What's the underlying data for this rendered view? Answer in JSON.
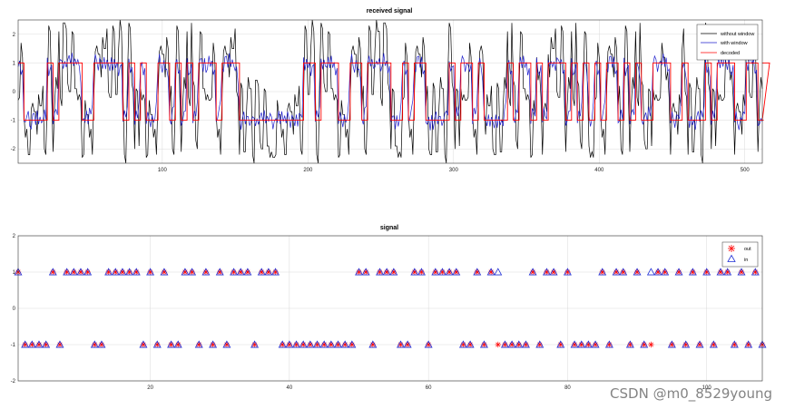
{
  "watermark": "CSDN @m0_8529young",
  "colors": {
    "without_window": "#000000",
    "with_window": "#1f1fcc",
    "decoded": "#ff0000",
    "out": "#ff0000",
    "in": "#1f2fd6",
    "grid": "#d9d9d9"
  },
  "chart_data": [
    {
      "type": "line",
      "title": "received signal",
      "xlabel": "",
      "ylabel": "",
      "xlim": [
        1,
        512
      ],
      "ylim": [
        -2.5,
        2.5
      ],
      "xticks": [
        100,
        200,
        300,
        400,
        500
      ],
      "yticks": [
        -2,
        -1,
        0,
        1,
        2
      ],
      "grid": true,
      "legend_position": "top-right",
      "series": [
        {
          "name": "without window",
          "color": "#000000"
        },
        {
          "name": "with window",
          "color": "#1f1fcc"
        },
        {
          "name": "decoded",
          "color": "#ff0000"
        }
      ],
      "samples_per_symbol": 4,
      "decoded_symbols": [
        1,
        -1,
        -1,
        -1,
        -1,
        1,
        -1,
        1,
        1,
        1,
        1,
        -1,
        -1,
        1,
        1,
        1,
        1,
        1,
        -1,
        1,
        -1,
        1,
        -1,
        -1,
        1,
        1,
        -1,
        1,
        -1,
        1,
        -1,
        1,
        1,
        1,
        -1,
        1,
        1,
        1,
        -1,
        -1,
        -1,
        -1,
        -1,
        -1,
        -1,
        -1,
        -1,
        -1,
        -1,
        1,
        1,
        -1,
        1,
        1,
        1,
        -1,
        -1,
        1,
        1,
        -1,
        1,
        1,
        1,
        1,
        -1,
        -1,
        1,
        -1,
        1,
        1,
        -1,
        -1,
        -1,
        -1,
        1,
        -1,
        1,
        1,
        -1,
        1,
        -1,
        -1,
        -1,
        -1,
        1,
        -1,
        1,
        1,
        -1,
        1,
        -1,
        1,
        1,
        1,
        -1,
        1,
        -1,
        1,
        -1,
        1,
        -1,
        1,
        1,
        -1,
        1,
        -1,
        1,
        -1,
        -1,
        1,
        1,
        1,
        -1,
        -1,
        1,
        -1,
        -1,
        -1,
        1,
        -1,
        1,
        1,
        1,
        -1,
        -1,
        1,
        1,
        -1,
        -1,
        1
      ],
      "with_window_offsets": [
        0.25,
        -0.2,
        0.35,
        -0.3,
        0.1,
        0.28,
        -0.15,
        0.22,
        -0.35,
        0.18,
        0.05,
        -0.25,
        0.3,
        -0.1,
        0.2,
        -0.3,
        0.15,
        0.33,
        -0.22,
        0.12,
        -0.05,
        0.27,
        -0.33,
        0.08,
        0.2,
        -0.18,
        0.31,
        -0.27,
        0.14,
        -0.09,
        0.24,
        0.36,
        -0.12,
        0.19,
        -0.29,
        0.07,
        0.3,
        -0.2,
        0.11,
        0.26,
        -0.34,
        0.16,
        -0.06,
        0.23,
        -0.31,
        0.09,
        0.21,
        -0.16,
        0.34,
        -0.24,
        0.13,
        0.02,
        -0.28,
        0.29,
        -0.11,
        0.17,
        0.32,
        -0.21,
        0.06,
        -0.32,
        0.25,
        -0.07,
        0.2,
        0.35,
        -0.19,
        0.1,
        -0.26,
        0.28,
        -0.14,
        0.18,
        -0.3,
        0.04,
        0.33,
        -0.23,
        0.15,
        -0.08,
        0.26,
        -0.35,
        0.12,
        0.22,
        -0.17,
        0.3,
        -0.27,
        0.09,
        0.24,
        -0.12,
        0.31,
        -0.04,
        0.19,
        -0.29,
        0.14,
        0.27,
        -0.2,
        0.07,
        -0.33,
        0.21,
        0.11,
        -0.25,
        0.34,
        -0.1,
        0.16,
        -0.22,
        0.29,
        0.03,
        -0.31,
        0.23,
        -0.15,
        0.18,
        0.32,
        -0.06,
        0.25,
        -0.28,
        0.12,
        -0.18,
        0.3,
        0.08,
        -0.24,
        0.2,
        -0.34,
        0.15,
        0.27,
        -0.09,
        0.22,
        -0.3,
        0.13,
        0.35,
        -0.14,
        0.05,
        -0.26,
        0.24,
        -0.19,
        0.31
      ],
      "without_window_offsets": [
        1.1,
        -0.9,
        0.6,
        -1.3,
        1.4,
        -0.5,
        0.9,
        -1.2,
        0.3,
        1.5,
        -1.0,
        0.7,
        -0.4,
        1.2,
        -1.4,
        0.2,
        0.8,
        -1.1,
        1.3,
        -0.6,
        0.5,
        -1.5,
        1.0,
        -0.3,
        1.4,
        -0.8,
        0.1,
        -1.2,
        0.9,
        1.1,
        -0.7,
        0.4,
        -1.4,
        1.2,
        -0.2,
        0.6,
        -1.0,
        1.5,
        -0.9,
        0.3,
        1.0,
        -1.3,
        0.7,
        -0.5,
        1.3,
        -1.1,
        0.2,
        0.9,
        -0.6,
        1.4,
        -1.5,
        0.5,
        -0.1,
        1.1,
        -0.8,
        1.2,
        -1.3,
        0.4,
        0.8,
        -1.0,
        1.5,
        -0.4,
        0.6,
        -1.2,
        1.0,
        0.1,
        -0.9,
        1.3,
        -0.7,
        0.3,
        -1.4,
        1.1,
        0.7,
        -0.5,
        1.4,
        -1.1,
        0.2,
        -0.8,
        1.2,
        0.5,
        -1.3,
        0.9,
        -0.3,
        1.5,
        -1.0,
        0.6,
        -0.2,
        1.1,
        -1.4,
        0.8,
        0.4,
        -1.2,
        1.3,
        -0.6,
        0.1,
        -1.5,
        1.0,
        0.7,
        -0.9,
        1.4,
        -0.4,
        0.3,
        -1.1,
        1.2,
        0.9,
        -1.3,
        0.5,
        -0.7,
        1.5,
        -0.2,
        0.6,
        -1.0,
        1.3,
        -0.8,
        0.2,
        1.1,
        -1.4,
        0.7,
        -0.5,
        1.0,
        0.4,
        -1.2,
        1.4,
        -0.9,
        0.3,
        -0.1,
        1.2,
        -1.3,
        0.8,
        -0.6,
        1.5,
        -1.1
      ]
    },
    {
      "type": "scatter",
      "title": "signal",
      "xlabel": "",
      "ylabel": "",
      "xlim": [
        1,
        108
      ],
      "ylim": [
        -2,
        2
      ],
      "xticks": [
        20,
        40,
        60,
        80,
        100
      ],
      "yticks": [
        -2,
        -1,
        0,
        1,
        2
      ],
      "grid": true,
      "legend_position": "top-right",
      "series": [
        {
          "name": "out",
          "marker": "asterisk",
          "color": "#ff0000"
        },
        {
          "name": "in",
          "marker": "triangle",
          "color": "#1f2fd6"
        }
      ],
      "in_values": [
        1,
        -1,
        -1,
        -1,
        -1,
        1,
        -1,
        1,
        1,
        1,
        1,
        -1,
        -1,
        1,
        1,
        1,
        1,
        1,
        -1,
        1,
        -1,
        1,
        -1,
        -1,
        1,
        1,
        -1,
        1,
        -1,
        1,
        -1,
        1,
        1,
        1,
        -1,
        1,
        1,
        1,
        -1,
        -1,
        -1,
        -1,
        -1,
        -1,
        -1,
        -1,
        -1,
        -1,
        -1,
        1,
        1,
        -1,
        1,
        1,
        1,
        -1,
        -1,
        1,
        1,
        -1,
        1,
        1,
        1,
        1,
        -1,
        -1,
        1,
        -1,
        1,
        1,
        -1,
        -1,
        -1,
        -1,
        1,
        -1,
        1,
        1,
        -1,
        1,
        -1,
        -1,
        -1,
        -1,
        1,
        -1,
        1,
        1,
        -1,
        1,
        -1,
        1,
        1,
        1,
        -1,
        1,
        -1,
        1,
        -1,
        1,
        -1,
        1,
        1,
        -1,
        1,
        -1,
        1,
        -1
      ],
      "out_values": [
        1,
        -1,
        -1,
        -1,
        -1,
        1,
        -1,
        1,
        1,
        1,
        1,
        -1,
        -1,
        1,
        1,
        1,
        1,
        1,
        -1,
        1,
        -1,
        1,
        -1,
        -1,
        1,
        1,
        -1,
        1,
        -1,
        1,
        -1,
        1,
        1,
        1,
        -1,
        1,
        1,
        1,
        -1,
        -1,
        -1,
        -1,
        -1,
        -1,
        -1,
        -1,
        -1,
        -1,
        -1,
        1,
        1,
        -1,
        1,
        1,
        1,
        -1,
        -1,
        1,
        1,
        -1,
        1,
        1,
        1,
        1,
        -1,
        -1,
        1,
        -1,
        1,
        -1,
        -1,
        -1,
        -1,
        -1,
        1,
        -1,
        1,
        1,
        -1,
        1,
        -1,
        -1,
        -1,
        -1,
        1,
        -1,
        1,
        1,
        -1,
        1,
        -1,
        -1,
        1,
        1,
        -1,
        1,
        -1,
        1,
        -1,
        1,
        -1,
        1,
        1,
        -1,
        1,
        -1,
        1,
        -1
      ]
    }
  ],
  "legends": [
    {
      "items": [
        "without window",
        "with window",
        "decoded"
      ]
    },
    {
      "items": [
        "out",
        "in"
      ]
    }
  ]
}
